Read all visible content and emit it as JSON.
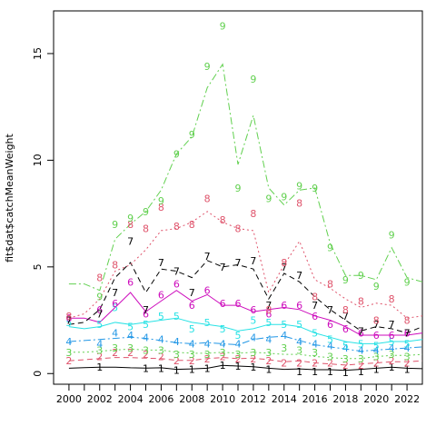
{
  "chart_data": {
    "type": "line",
    "title": "",
    "xlabel": "",
    "ylabel": "fit$dat$catchMeanWeight",
    "xlim": [
      1999,
      2023
    ],
    "ylim": [
      -0.5,
      17.0
    ],
    "x_ticks": [
      2000,
      2002,
      2004,
      2006,
      2008,
      2010,
      2012,
      2014,
      2016,
      2018,
      2020,
      2022
    ],
    "y_ticks": [
      0,
      5,
      10,
      15
    ],
    "x": [
      2000,
      2001,
      2002,
      2003,
      2004,
      2005,
      2006,
      2007,
      2008,
      2009,
      2010,
      2011,
      2012,
      2013,
      2014,
      2015,
      2016,
      2017,
      2018,
      2019,
      2020,
      2021,
      2022,
      2023
    ],
    "observed_x": [
      2000,
      2001,
      2002,
      2003,
      2004,
      2005,
      2006,
      2007,
      2008,
      2009,
      2010,
      2011,
      2012,
      2013,
      2014,
      2015,
      2016,
      2017,
      2018,
      2019,
      2020,
      2021,
      2022
    ],
    "series": [
      {
        "label": "1",
        "color": "#000000",
        "dash": "",
        "fitted": [
          0.25,
          0.28,
          0.3,
          0.3,
          0.27,
          0.26,
          0.27,
          0.2,
          0.22,
          0.25,
          0.38,
          0.35,
          0.32,
          0.25,
          0.2,
          0.22,
          0.18,
          0.18,
          0.15,
          0.2,
          0.25,
          0.3,
          0.25,
          0.23
        ],
        "observed": [
          null,
          null,
          0.3,
          null,
          null,
          0.25,
          0.25,
          0.15,
          0.2,
          0.25,
          0.4,
          0.35,
          0.3,
          0.2,
          null,
          0.1,
          0.1,
          0.1,
          0.05,
          0.1,
          0.2,
          0.3,
          0.2
        ]
      },
      {
        "label": "2",
        "color": "#df536b",
        "dash": "6,4",
        "fitted": [
          0.6,
          0.65,
          0.7,
          0.75,
          0.75,
          0.72,
          0.7,
          0.62,
          0.62,
          0.7,
          0.75,
          0.7,
          0.72,
          0.65,
          0.55,
          0.6,
          0.5,
          0.45,
          0.4,
          0.45,
          0.5,
          0.55,
          0.55,
          0.6
        ],
        "observed": [
          0.6,
          null,
          0.8,
          1.0,
          1.0,
          0.9,
          0.8,
          0.6,
          0.6,
          0.7,
          0.8,
          0.7,
          0.7,
          0.6,
          0.5,
          0.5,
          0.5,
          0.5,
          0.4,
          0.4,
          0.5,
          0.6,
          0.5
        ]
      },
      {
        "label": "3",
        "color": "#61d04f",
        "dash": "2,3",
        "fitted": [
          1.0,
          1.0,
          1.05,
          1.1,
          1.15,
          1.1,
          1.1,
          1.0,
          0.95,
          0.95,
          1.0,
          0.95,
          1.0,
          0.95,
          0.9,
          0.9,
          0.8,
          0.75,
          0.7,
          0.7,
          0.8,
          0.85,
          0.85,
          0.9
        ],
        "observed": [
          1.0,
          null,
          1.1,
          1.2,
          1.2,
          1.1,
          1.1,
          0.9,
          0.9,
          0.9,
          1.0,
          0.9,
          1.0,
          1.0,
          1.2,
          1.1,
          1.0,
          0.8,
          0.7,
          0.7,
          0.8,
          0.9,
          0.8
        ]
      },
      {
        "label": "4",
        "color": "#2297e6",
        "dash": "8,3,2,3",
        "fitted": [
          1.5,
          1.55,
          1.6,
          1.65,
          1.7,
          1.65,
          1.55,
          1.45,
          1.4,
          1.45,
          1.4,
          1.35,
          1.6,
          1.7,
          1.75,
          1.55,
          1.35,
          1.25,
          1.15,
          1.05,
          1.1,
          1.15,
          1.2,
          1.25
        ],
        "observed": [
          1.5,
          null,
          1.4,
          1.9,
          1.8,
          1.7,
          1.6,
          1.5,
          1.4,
          1.4,
          1.4,
          1.4,
          1.7,
          1.6,
          1.8,
          1.5,
          1.4,
          1.3,
          1.2,
          1.1,
          1.1,
          1.2,
          1.2
        ]
      },
      {
        "label": "5",
        "color": "#28e2e5",
        "dash": "",
        "fitted": [
          2.2,
          2.1,
          2.2,
          2.4,
          2.3,
          2.4,
          2.5,
          2.6,
          2.4,
          2.3,
          2.2,
          2.0,
          2.1,
          2.3,
          2.3,
          2.2,
          1.9,
          1.7,
          1.5,
          1.4,
          1.4,
          1.5,
          1.5,
          1.6
        ],
        "observed": [
          2.4,
          null,
          2.3,
          3.1,
          2.2,
          2.3,
          2.7,
          2.7,
          2.1,
          2.4,
          2.1,
          1.8,
          2.5,
          2.4,
          2.3,
          2.3,
          1.9,
          1.6,
          1.3,
          1.4,
          1.3,
          1.5,
          1.4
        ]
      },
      {
        "label": "6",
        "color": "#cd0bbc",
        "dash": "",
        "fitted": [
          2.6,
          2.6,
          2.4,
          3.1,
          3.8,
          2.9,
          3.4,
          3.9,
          3.4,
          3.7,
          3.2,
          3.2,
          2.9,
          3.0,
          3.1,
          3.0,
          2.7,
          2.5,
          2.2,
          1.8,
          1.8,
          1.8,
          1.8,
          1.9
        ],
        "observed": [
          2.6,
          null,
          3.0,
          3.3,
          4.3,
          2.8,
          3.7,
          4.2,
          3.2,
          3.9,
          3.3,
          3.3,
          3.0,
          2.8,
          3.2,
          3.2,
          2.7,
          2.3,
          2.1,
          1.9,
          1.8,
          1.8,
          1.9
        ]
      },
      {
        "label": "7",
        "color": "#000000",
        "dash": "6,4",
        "fitted": [
          2.3,
          2.4,
          3.0,
          4.5,
          5.2,
          3.8,
          4.9,
          4.8,
          4.5,
          5.3,
          5.0,
          5.1,
          4.9,
          3.5,
          4.7,
          4.3,
          3.6,
          3.0,
          2.5,
          2.0,
          2.2,
          2.1,
          1.9,
          2.2
        ],
        "observed": [
          2.5,
          null,
          2.8,
          3.8,
          6.2,
          3.0,
          5.2,
          4.8,
          3.8,
          5.5,
          5.0,
          5.2,
          5.3,
          3.2,
          5.0,
          4.6,
          3.2,
          3.0,
          2.7,
          2.0,
          2.3,
          2.3,
          1.9
        ]
      },
      {
        "label": "8",
        "color": "#df536b",
        "dash": "2,3",
        "fitted": [
          2.6,
          2.8,
          3.5,
          4.8,
          5.1,
          5.8,
          6.7,
          6.8,
          7.1,
          7.6,
          7.1,
          6.8,
          6.7,
          3.8,
          5.1,
          6.2,
          4.4,
          4.0,
          3.5,
          3.1,
          3.3,
          3.2,
          2.6,
          2.7
        ],
        "observed": [
          2.7,
          null,
          4.5,
          5.1,
          7.0,
          6.8,
          7.8,
          6.9,
          7.0,
          8.2,
          7.2,
          6.8,
          7.5,
          3.0,
          5.2,
          8.0,
          3.6,
          4.2,
          3.0,
          3.4,
          2.5,
          3.5,
          2.5
        ]
      },
      {
        "label": "9",
        "color": "#61d04f",
        "dash": "8,3,2,3",
        "fitted": [
          4.2,
          4.2,
          3.9,
          6.3,
          7.0,
          7.6,
          8.6,
          10.3,
          11.1,
          13.4,
          14.5,
          9.8,
          12.1,
          8.7,
          7.9,
          8.6,
          8.7,
          6.1,
          4.6,
          4.6,
          4.4,
          5.9,
          4.5,
          4.3
        ],
        "observed": [
          null,
          null,
          3.6,
          7.0,
          7.3,
          7.6,
          8.1,
          10.3,
          11.2,
          14.4,
          16.3,
          8.7,
          13.8,
          8.2,
          8.3,
          8.8,
          8.7,
          5.9,
          4.4,
          4.6,
          4.1,
          6.5,
          4.3
        ]
      }
    ]
  }
}
